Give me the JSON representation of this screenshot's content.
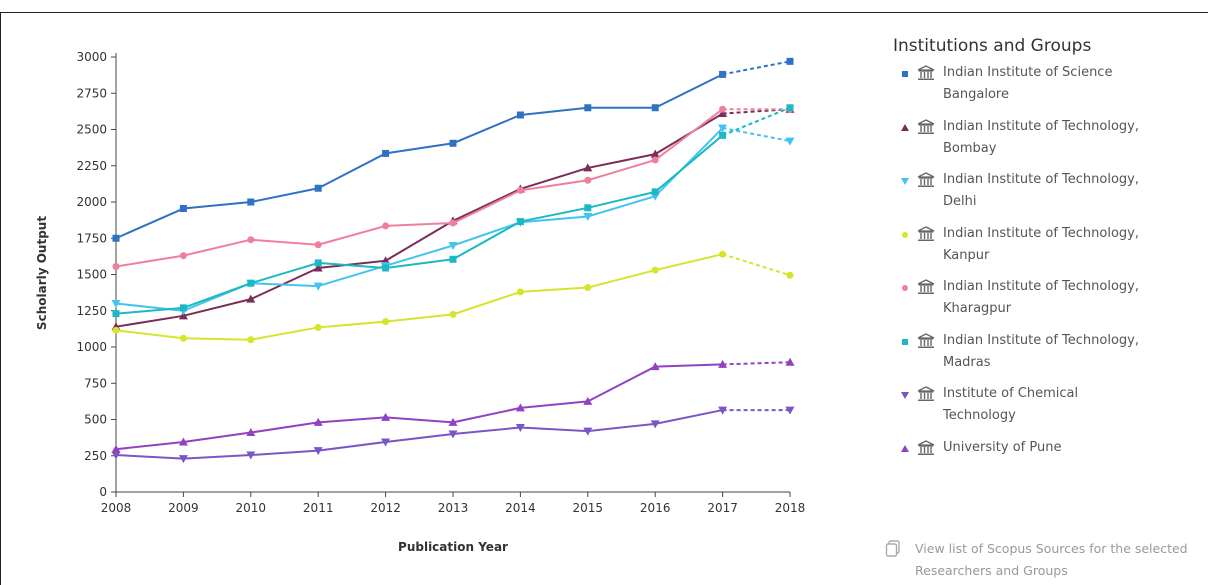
{
  "chart_data": {
    "type": "line",
    "title": "",
    "xlabel": "Publication Year",
    "ylabel": "Scholarly Output",
    "x": [
      2008,
      2009,
      2010,
      2011,
      2012,
      2013,
      2014,
      2015,
      2016,
      2017,
      2018
    ],
    "ylim": [
      0,
      3000
    ],
    "yticks": [
      0,
      250,
      500,
      750,
      1000,
      1250,
      1500,
      1750,
      2000,
      2250,
      2500,
      2750,
      3000
    ],
    "xticks": [
      "2008",
      "2009",
      "2010",
      "2011",
      "2012",
      "2013",
      "2014",
      "2015",
      "2016",
      "2017",
      "2018"
    ],
    "grid": false,
    "legend_title": "Institutions and Groups",
    "legend_position": "right",
    "last_segment_style": "dashed",
    "series": [
      {
        "name": "Indian Institute of Science Bangalore",
        "label_lines": [
          "Indian Institute of Science",
          "Bangalore"
        ],
        "marker": "square",
        "color": "#2f72c4",
        "values": [
          1750,
          1955,
          2000,
          2095,
          2335,
          2405,
          2600,
          2650,
          2650,
          2880,
          2970
        ]
      },
      {
        "name": "Indian Institute of Technology, Bombay",
        "label_lines": [
          "Indian Institute of Technology,",
          "Bombay"
        ],
        "marker": "triangle-up",
        "color": "#7b2d5a",
        "values": [
          1140,
          1215,
          1330,
          1545,
          1595,
          1870,
          2090,
          2235,
          2330,
          2610,
          2640
        ]
      },
      {
        "name": "Indian Institute of Technology, Delhi",
        "label_lines": [
          "Indian Institute of Technology,",
          "Delhi"
        ],
        "marker": "triangle-down",
        "color": "#43c4f0",
        "values": [
          1300,
          1250,
          1440,
          1420,
          1560,
          1700,
          1860,
          1900,
          2040,
          2510,
          2420
        ]
      },
      {
        "name": "Indian Institute of Technology, Kanpur",
        "label_lines": [
          "Indian Institute of Technology,",
          "Kanpur"
        ],
        "marker": "circle",
        "color": "#d6e42c",
        "values": [
          1115,
          1060,
          1050,
          1135,
          1175,
          1225,
          1380,
          1410,
          1530,
          1640,
          1495
        ]
      },
      {
        "name": "Indian Institute of Technology, Kharagpur",
        "label_lines": [
          "Indian Institute of Technology,",
          "Kharagpur"
        ],
        "marker": "circle",
        "color": "#f07f9b",
        "values": [
          1555,
          1630,
          1740,
          1705,
          1835,
          1855,
          2080,
          2150,
          2290,
          2640,
          2640
        ]
      },
      {
        "name": "Indian Institute of Technology, Madras",
        "label_lines": [
          "Indian Institute of Technology,",
          "Madras"
        ],
        "marker": "square",
        "color": "#1cb8c4",
        "values": [
          1230,
          1270,
          1440,
          1580,
          1545,
          1605,
          1865,
          1960,
          2070,
          2460,
          2650
        ]
      },
      {
        "name": "Institute of Chemical Technology",
        "label_lines": [
          "Institute of Chemical",
          "Technology"
        ],
        "marker": "triangle-down",
        "color": "#7a55c6",
        "values": [
          255,
          230,
          255,
          285,
          345,
          400,
          445,
          420,
          470,
          565,
          565
        ]
      },
      {
        "name": "University of Pune",
        "label_lines": [
          "University of Pune"
        ],
        "marker": "triangle-up",
        "color": "#9142c2",
        "values": [
          295,
          345,
          410,
          480,
          515,
          480,
          580,
          625,
          865,
          880,
          895
        ]
      }
    ]
  },
  "footer": {
    "link_line1": "View list of Scopus Sources for the selected",
    "link_line2": "Researchers and Groups"
  },
  "icons": {
    "institution": "institution-icon",
    "document": "document-icon"
  }
}
